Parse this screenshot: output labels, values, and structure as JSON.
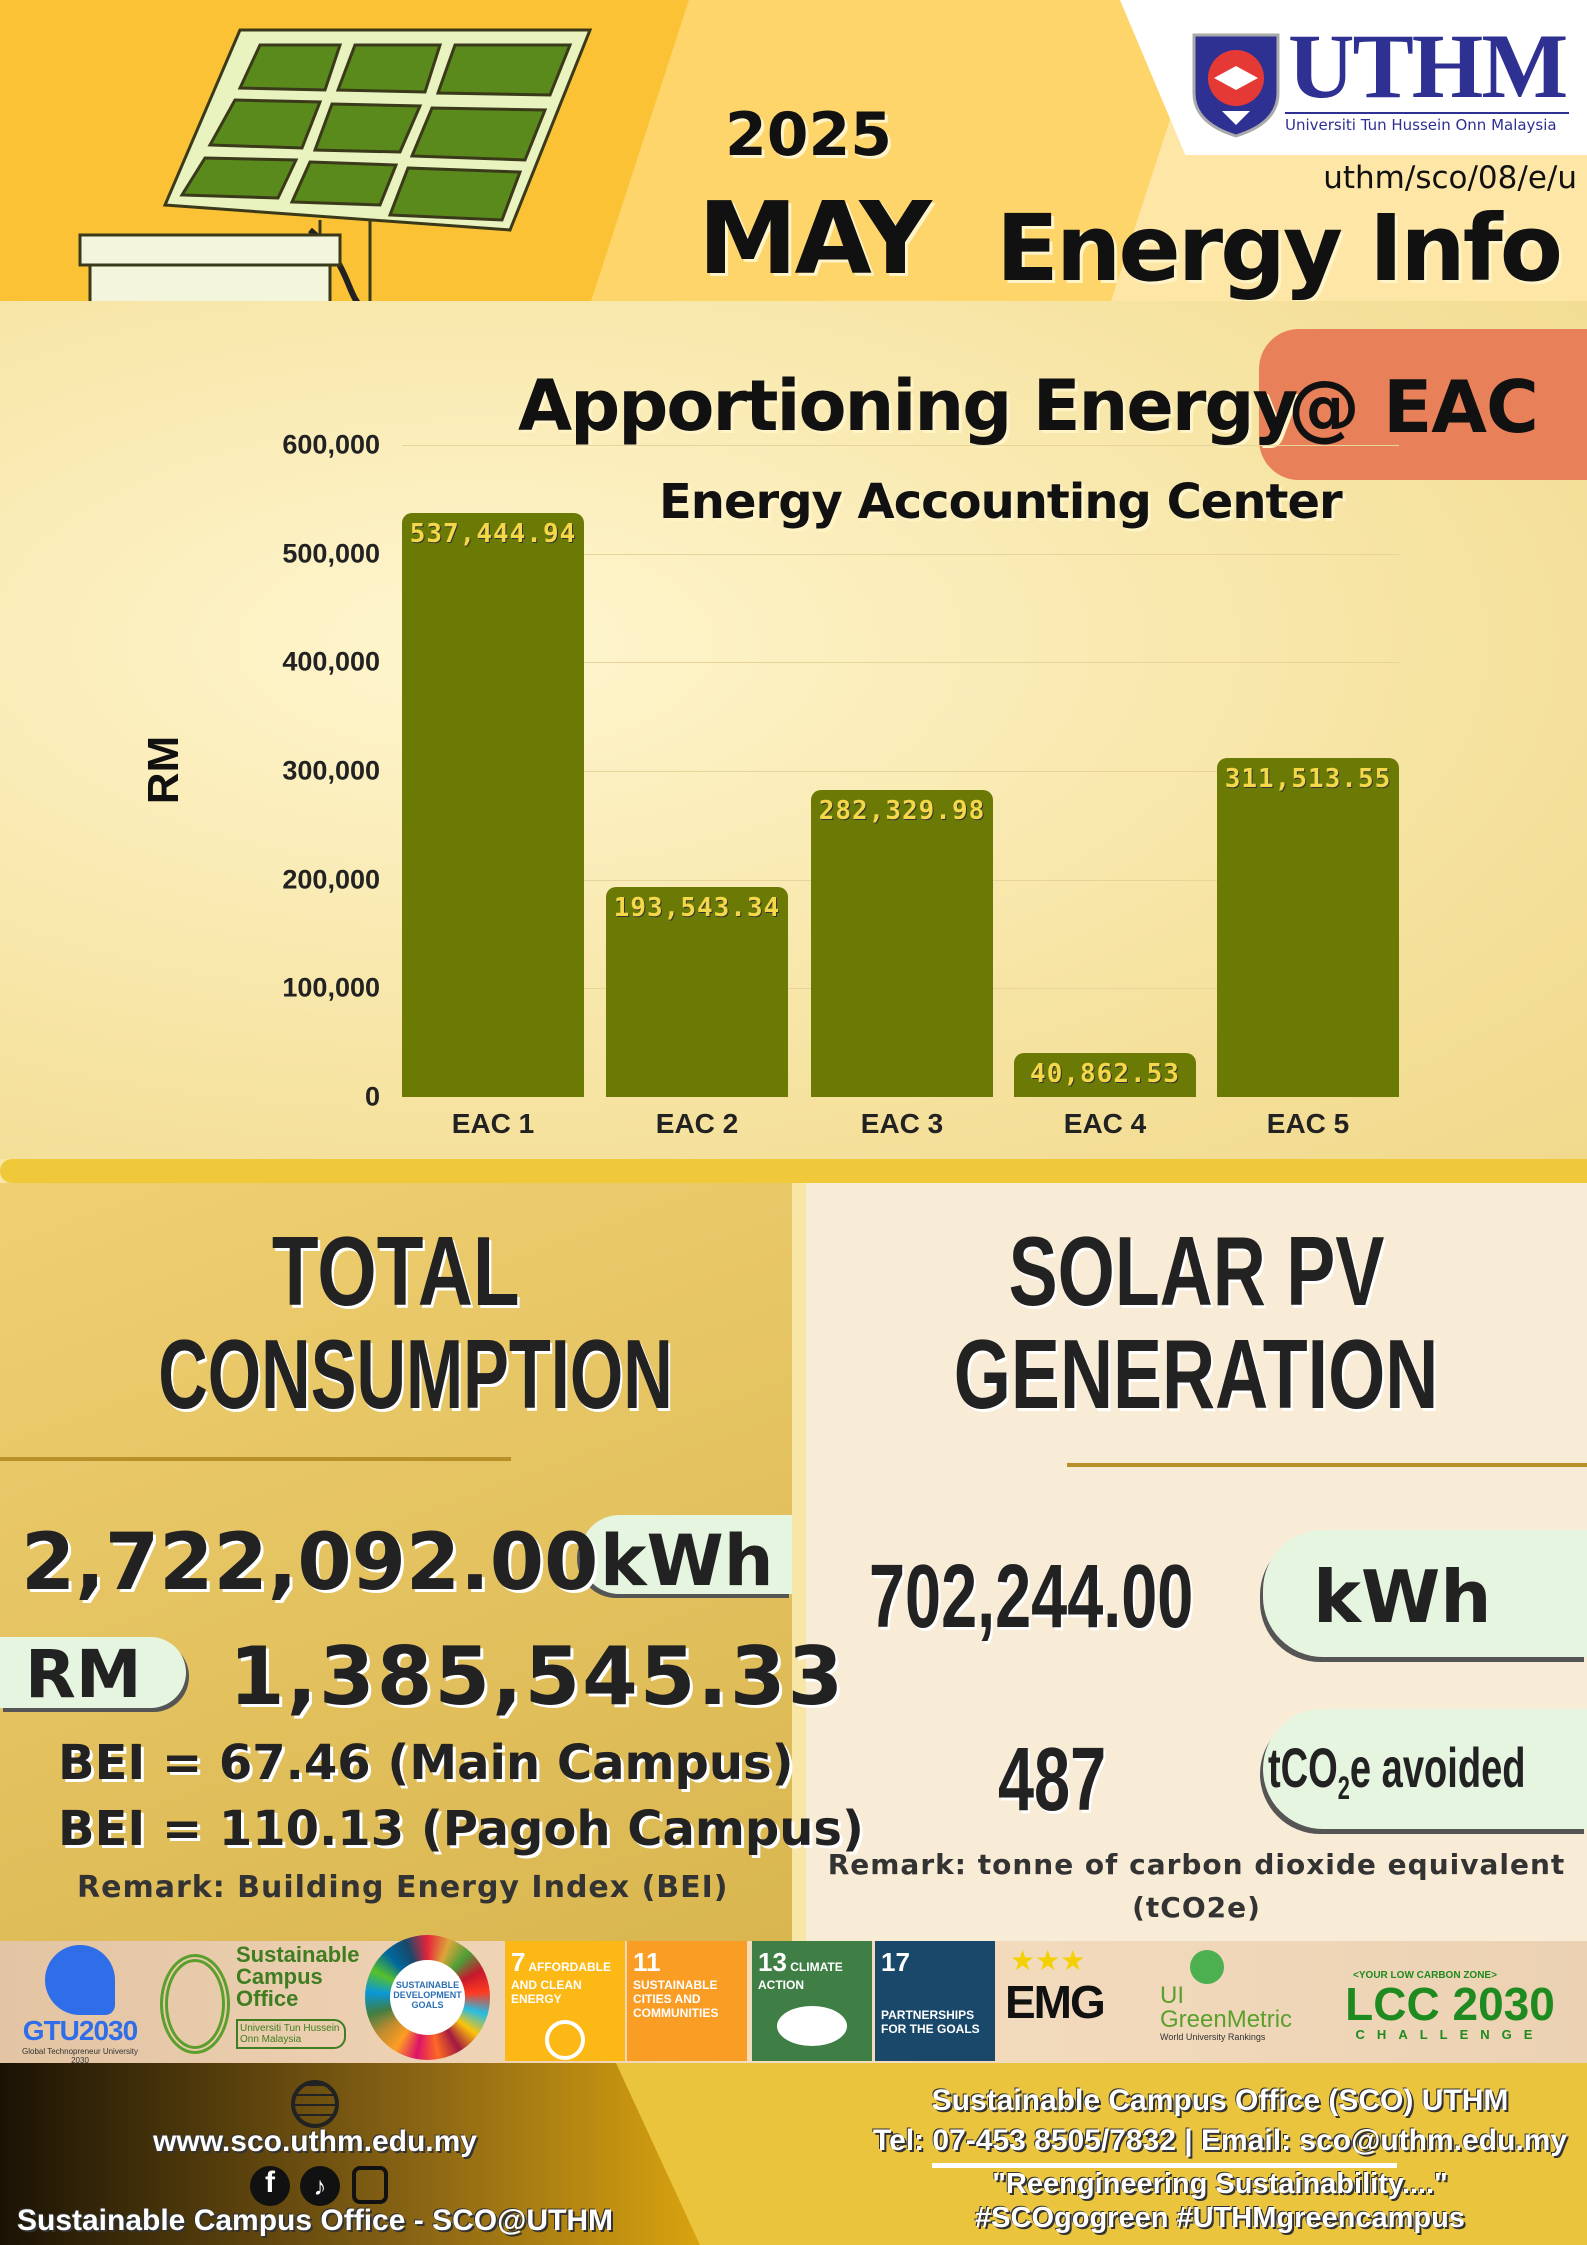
{
  "header": {
    "year": "2025",
    "month": "MAY",
    "title": "Energy Info",
    "ref": "uthm/sco/08/e/u",
    "logo_text": "UTHM",
    "logo_sub": "Universiti Tun Hussein Onn Malaysia"
  },
  "chart_data": {
    "type": "bar",
    "title": "Apportioning Energy",
    "title_badge": "@ EAC",
    "subtitle": "Energy Accounting Center",
    "ylabel": "RM",
    "xlabel": "",
    "ylim": [
      0,
      600000
    ],
    "yticks": [
      "0",
      "100,000",
      "200,000",
      "300,000",
      "400,000",
      "500,000",
      "600,000"
    ],
    "categories": [
      "EAC 1",
      "EAC 2",
      "EAC 3",
      "EAC 4",
      "EAC 5"
    ],
    "values": [
      537444.94,
      193543.34,
      282329.98,
      40862.53,
      311513.55
    ],
    "data_labels": [
      "537,444.94",
      "193,543.34",
      "282,329.98",
      "40,862.53",
      "311,513.55"
    ],
    "bar_color": "#6b7a04"
  },
  "consumption": {
    "title1": "TOTAL",
    "title2": "CONSUMPTION",
    "kwh": "2,722,092.00",
    "kwh_unit": "kWh",
    "rm_label": "RM",
    "rm": "1,385,545.33",
    "bei_main": "BEI = 67.46 (Main Campus)",
    "bei_pagoh": "BEI =  110.13 (Pagoh Campus)",
    "remark": "Remark: Building Energy Index (BEI)"
  },
  "solar": {
    "title1": "SOLAR PV",
    "title2": "GENERATION",
    "kwh": "702,244.00",
    "kwh_unit": "kWh",
    "co2": "487",
    "co2_unit_a": "tCO",
    "co2_unit_sub": "2",
    "co2_unit_b": "e avoided",
    "remark1": "Remark: tonne of carbon dioxide equivalent",
    "remark2": "(tCO2e)"
  },
  "logos": {
    "gtu": "GTU2030",
    "gtu_sub": "Global Technopreneur University 2030",
    "sco": "Sustainable Campus Office",
    "sco_sub": "Universiti Tun Hussein Onn Malaysia",
    "sdg": "SUSTAINABLE DEVELOPMENT GOALS",
    "sdg7": "7",
    "sdg7_t": "AFFORDABLE AND CLEAN ENERGY",
    "sdg11": "11",
    "sdg11_t": "SUSTAINABLE CITIES AND COMMUNITIES",
    "sdg13": "13",
    "sdg13_t": "CLIMATE ACTION",
    "sdg17": "17",
    "sdg17_t": "PARTNERSHIPS FOR THE GOALS",
    "emg": "EMG",
    "ui": "UI GreenMetric",
    "ui_sub": "World University Rankings",
    "lcc_top": "<YOUR LOW CARBON ZONE>",
    "lcc": "LCC 2030",
    "lcc_sub": "CHALLENGE"
  },
  "footer": {
    "website": "www.sco.uthm.edu.my",
    "social": "Sustainable Campus Office - SCO@UTHM",
    "org": "Sustainable Campus Office (SCO) UTHM",
    "contact": "Tel: 07-453 8505/7832 | Email: sco@uthm.edu.my",
    "slogan": "\"Reengineering Sustainability....\"",
    "tags": "#SCOgogreen #UTHMgreencampus"
  }
}
